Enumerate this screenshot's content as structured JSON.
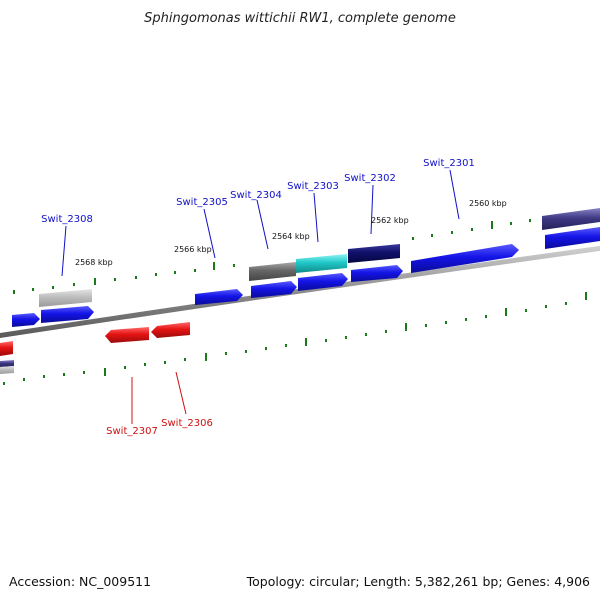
{
  "title": "Sphingomonas wittichii RW1, complete genome",
  "footer": {
    "accession": "Accession: NC_009511",
    "summary": "Topology: circular; Length: 5,382,261 bp; Genes: 4,906"
  },
  "colors": {
    "plus_gene": "#1414e6",
    "minus_gene": "#e61414",
    "backbone": "#8c8c8c",
    "tick": "#1a7a1a",
    "plus_label": "#1010c8",
    "minus_label": "#d01010"
  },
  "kbp_labels": [
    "2568 kbp",
    "2566 kbp",
    "2564 kbp",
    "2562 kbp",
    "2560 kbp"
  ],
  "genes": [
    {
      "label": "Swit_2308",
      "strand": "plus"
    },
    {
      "label": "Swit_2305",
      "strand": "plus"
    },
    {
      "label": "Swit_2304",
      "strand": "plus"
    },
    {
      "label": "Swit_2303",
      "strand": "plus"
    },
    {
      "label": "Swit_2302",
      "strand": "plus"
    },
    {
      "label": "Swit_2301",
      "strand": "plus"
    },
    {
      "label": "Swit_2307",
      "strand": "minus"
    },
    {
      "label": "Swit_2306",
      "strand": "minus"
    }
  ]
}
